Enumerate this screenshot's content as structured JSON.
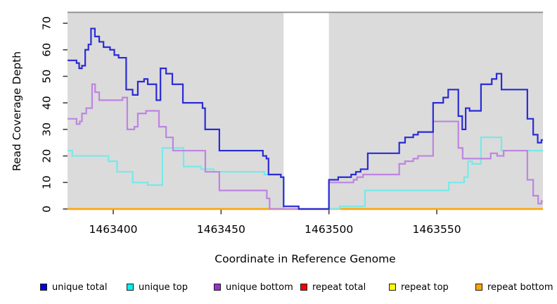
{
  "figure": {
    "xlabel": "Coordinate in Reference Genome",
    "ylabel": "Read Coverage Depth"
  },
  "chart_data": {
    "type": "line",
    "subtype": "step-coverage-plot",
    "xlabel": "Coordinate in Reference Genome",
    "ylabel": "Read Coverage Depth",
    "xlim": [
      1463378.8,
      1463599.2
    ],
    "ylim": [
      0,
      70
    ],
    "x_ticks": [
      1463400,
      1463450,
      1463500,
      1463550
    ],
    "y_ticks": [
      0,
      10,
      20,
      30,
      40,
      50,
      60,
      70
    ],
    "grid": false,
    "legend_position": "bottom",
    "plot_bg_color": "#DBDBDB",
    "top_border_color": "#8A8A8A",
    "gap_band": {
      "x_start": 1463479,
      "x_end": 1463500,
      "color": "#FFFFFF"
    },
    "series": [
      {
        "name": "unique total",
        "line_color": "#2B2BD5",
        "legend_color": "#0000DC",
        "x_end": 1463599.2,
        "points": [
          [
            1463378.8,
            56
          ],
          [
            1463383,
            55
          ],
          [
            1463384.2,
            53
          ],
          [
            1463385.5,
            54
          ],
          [
            1463387,
            60
          ],
          [
            1463388.5,
            62
          ],
          [
            1463389.7,
            68
          ],
          [
            1463391.5,
            65
          ],
          [
            1463393.5,
            63
          ],
          [
            1463395.5,
            61
          ],
          [
            1463398.5,
            60
          ],
          [
            1463400.5,
            58
          ],
          [
            1463402.5,
            57
          ],
          [
            1463406,
            45
          ],
          [
            1463409,
            43
          ],
          [
            1463411.4,
            48
          ],
          [
            1463414.3,
            49
          ],
          [
            1463416,
            47
          ],
          [
            1463420,
            41
          ],
          [
            1463421.9,
            53
          ],
          [
            1463424.5,
            51
          ],
          [
            1463427.4,
            47
          ],
          [
            1463432.3,
            40
          ],
          [
            1463441.4,
            38
          ],
          [
            1463442.6,
            30
          ],
          [
            1463449.2,
            22
          ],
          [
            1463469.4,
            20
          ],
          [
            1463471,
            19
          ],
          [
            1463472,
            13
          ],
          [
            1463477.7,
            12
          ],
          [
            1463479,
            1
          ],
          [
            1463486,
            0
          ],
          [
            1463500,
            11
          ],
          [
            1463504.3,
            12
          ],
          [
            1463510.3,
            13
          ],
          [
            1463512.5,
            14
          ],
          [
            1463514.7,
            15
          ],
          [
            1463518,
            21
          ],
          [
            1463532.6,
            25
          ],
          [
            1463535.3,
            27
          ],
          [
            1463539.1,
            28
          ],
          [
            1463541.3,
            29
          ],
          [
            1463548.3,
            40
          ],
          [
            1463553,
            42
          ],
          [
            1463555.3,
            45
          ],
          [
            1463560,
            35
          ],
          [
            1463561.8,
            30
          ],
          [
            1463563.4,
            38
          ],
          [
            1463565.2,
            37
          ],
          [
            1463570.5,
            47
          ],
          [
            1463575.5,
            49
          ],
          [
            1463577.7,
            51
          ],
          [
            1463580,
            45
          ],
          [
            1463592,
            34
          ],
          [
            1463594.7,
            28
          ],
          [
            1463596.8,
            25
          ],
          [
            1463598.5,
            26
          ]
        ]
      },
      {
        "name": "unique top",
        "line_color": "#76E9E9",
        "legend_color": "#00EFEF",
        "x_end": 1463599.2,
        "points": [
          [
            1463378.8,
            22
          ],
          [
            1463381,
            20
          ],
          [
            1463397.8,
            18
          ],
          [
            1463401.8,
            14
          ],
          [
            1463409,
            10
          ],
          [
            1463416,
            9
          ],
          [
            1463422.8,
            23
          ],
          [
            1463432.6,
            16
          ],
          [
            1463440.7,
            15
          ],
          [
            1463446.6,
            14
          ],
          [
            1463470.1,
            13
          ],
          [
            1463477.7,
            12
          ],
          [
            1463479,
            0
          ],
          [
            1463505,
            1
          ],
          [
            1463516.7,
            7
          ],
          [
            1463555.6,
            10
          ],
          [
            1463562.7,
            12
          ],
          [
            1463564.5,
            18
          ],
          [
            1463566.4,
            17
          ],
          [
            1463570.5,
            27
          ],
          [
            1463580,
            22
          ]
        ]
      },
      {
        "name": "unique bottom",
        "line_color": "#BD85E0",
        "legend_color": "#9932CC",
        "x_end": 1463599.2,
        "points": [
          [
            1463378.8,
            34
          ],
          [
            1463383,
            32
          ],
          [
            1463384.5,
            33
          ],
          [
            1463385.5,
            36
          ],
          [
            1463387.5,
            38
          ],
          [
            1463390.2,
            47
          ],
          [
            1463391.6,
            44
          ],
          [
            1463393.5,
            41
          ],
          [
            1463404.3,
            42
          ],
          [
            1463406.5,
            30
          ],
          [
            1463409.8,
            31
          ],
          [
            1463411.4,
            36
          ],
          [
            1463415.2,
            37
          ],
          [
            1463421.2,
            31
          ],
          [
            1463424.5,
            27
          ],
          [
            1463427.7,
            22
          ],
          [
            1463442.7,
            14
          ],
          [
            1463449.2,
            7
          ],
          [
            1463471.2,
            4
          ],
          [
            1463472.5,
            0
          ],
          [
            1463500,
            10
          ],
          [
            1463511.4,
            11
          ],
          [
            1463513,
            12
          ],
          [
            1463515.8,
            13
          ],
          [
            1463532.6,
            17
          ],
          [
            1463535.3,
            18
          ],
          [
            1463539.1,
            19
          ],
          [
            1463541.3,
            20
          ],
          [
            1463548.3,
            33
          ],
          [
            1463560,
            23
          ],
          [
            1463562,
            19
          ],
          [
            1463575,
            21
          ],
          [
            1463578,
            20
          ],
          [
            1463581,
            22
          ],
          [
            1463592,
            11
          ],
          [
            1463594.7,
            5
          ],
          [
            1463597,
            2
          ],
          [
            1463598.5,
            3
          ]
        ]
      },
      {
        "name": "repeat total",
        "line_color": "#F40000",
        "legend_color": "#F40000",
        "x_end": 1463599.2,
        "points": [
          [
            1463378.8,
            0
          ]
        ]
      },
      {
        "name": "repeat top",
        "line_color": "#FFFF00",
        "legend_color": "#FFFF00",
        "x_end": 1463599.2,
        "points": [
          [
            1463378.8,
            0
          ]
        ]
      },
      {
        "name": "repeat bottom",
        "line_color": "#FFA500",
        "legend_color": "#FFA500",
        "x_end": 1463599.2,
        "points": [
          [
            1463378.8,
            0
          ]
        ]
      }
    ]
  },
  "legend": {
    "items": [
      {
        "label": "unique total"
      },
      {
        "label": "unique top"
      },
      {
        "label": "unique bottom"
      },
      {
        "label": "repeat total"
      },
      {
        "label": "repeat top"
      },
      {
        "label": "repeat bottom"
      }
    ]
  }
}
